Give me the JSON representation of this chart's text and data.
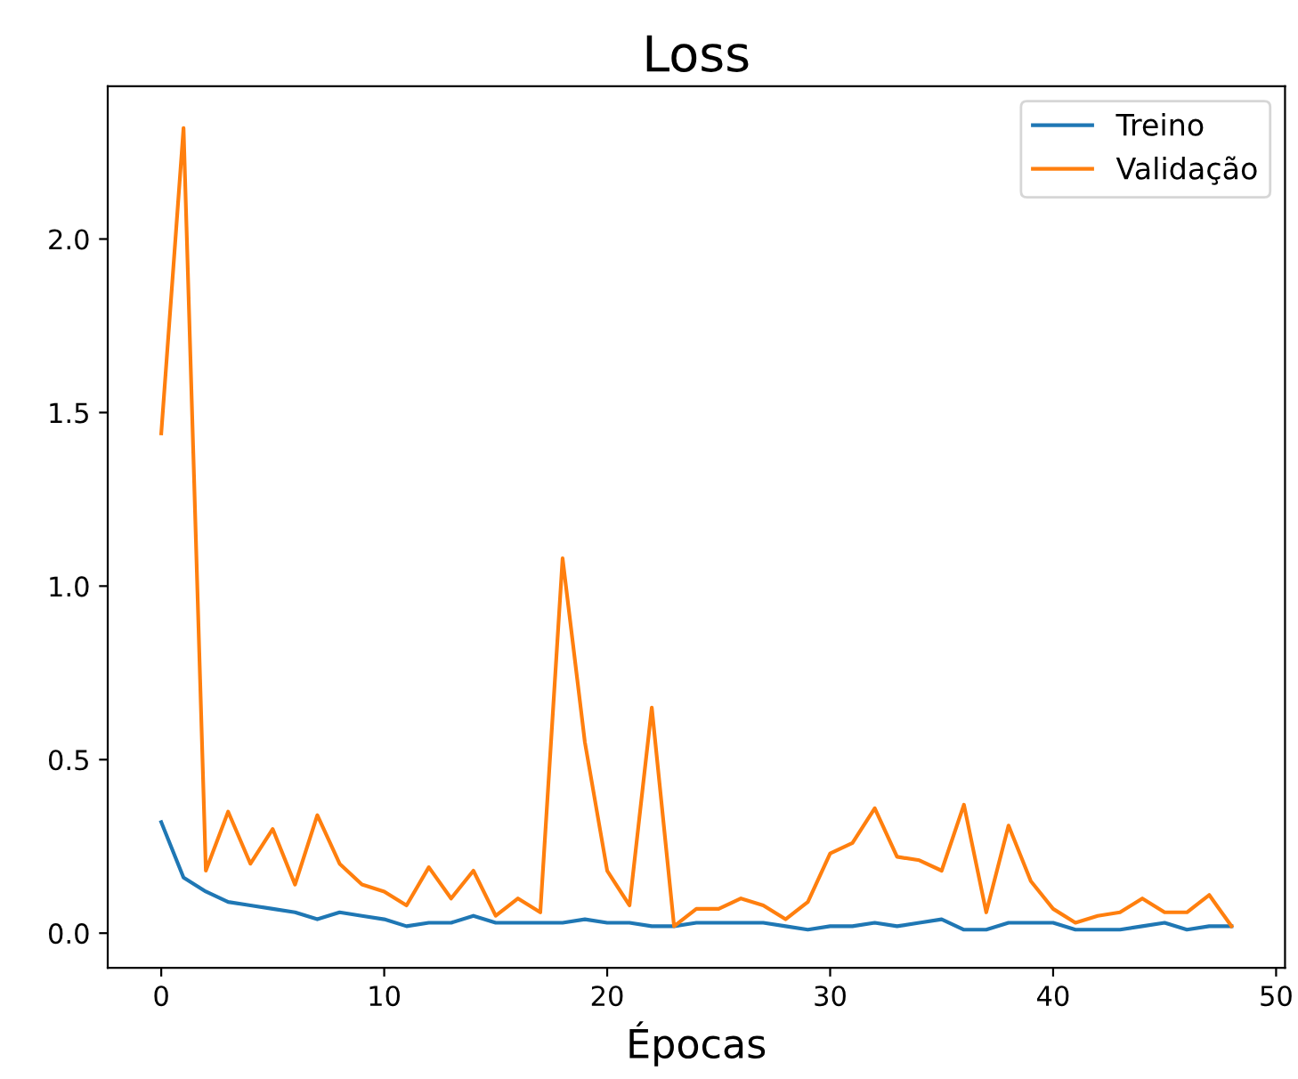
{
  "chart_data": {
    "type": "line",
    "title": "Loss",
    "xlabel": "Épocas",
    "x": [
      0,
      1,
      2,
      3,
      4,
      5,
      6,
      7,
      8,
      9,
      10,
      11,
      12,
      13,
      14,
      15,
      16,
      17,
      18,
      19,
      20,
      21,
      22,
      23,
      24,
      25,
      26,
      27,
      28,
      29,
      30,
      31,
      32,
      33,
      34,
      35,
      36,
      37,
      38,
      39,
      40,
      41,
      42,
      43,
      44,
      45,
      46,
      47,
      48
    ],
    "series": [
      {
        "name": "Treino",
        "color": "#1f77b4",
        "values": [
          0.32,
          0.16,
          0.12,
          0.09,
          0.08,
          0.07,
          0.06,
          0.04,
          0.06,
          0.05,
          0.04,
          0.02,
          0.03,
          0.03,
          0.05,
          0.03,
          0.03,
          0.03,
          0.03,
          0.04,
          0.03,
          0.03,
          0.02,
          0.02,
          0.03,
          0.03,
          0.03,
          0.03,
          0.02,
          0.01,
          0.02,
          0.02,
          0.03,
          0.02,
          0.03,
          0.04,
          0.01,
          0.01,
          0.03,
          0.03,
          0.03,
          0.01,
          0.01,
          0.01,
          0.02,
          0.03,
          0.01,
          0.02,
          0.02
        ]
      },
      {
        "name": "Validação",
        "color": "#ff7f0e",
        "values": [
          1.44,
          2.32,
          0.18,
          0.35,
          0.2,
          0.3,
          0.14,
          0.34,
          0.2,
          0.14,
          0.12,
          0.08,
          0.19,
          0.1,
          0.18,
          0.05,
          0.1,
          0.06,
          1.08,
          0.55,
          0.18,
          0.08,
          0.65,
          0.02,
          0.07,
          0.07,
          0.1,
          0.08,
          0.04,
          0.09,
          0.23,
          0.26,
          0.36,
          0.22,
          0.21,
          0.18,
          0.37,
          0.06,
          0.31,
          0.15,
          0.07,
          0.03,
          0.05,
          0.06,
          0.1,
          0.06,
          0.06,
          0.11,
          0.02
        ]
      }
    ],
    "xlim": [
      -2.4,
      50.4
    ],
    "xticks": [
      0,
      10,
      20,
      30,
      40,
      50
    ],
    "ylim": [
      -0.1,
      2.44
    ],
    "yticks": [
      {
        "value": 0,
        "label": "0.0"
      },
      {
        "value": 0.5,
        "label": "0.5"
      },
      {
        "value": 1,
        "label": "1.0"
      },
      {
        "value": 1.5,
        "label": "1.5"
      },
      {
        "value": 2,
        "label": "2.0"
      }
    ],
    "legend": "top right",
    "grid": false
  }
}
